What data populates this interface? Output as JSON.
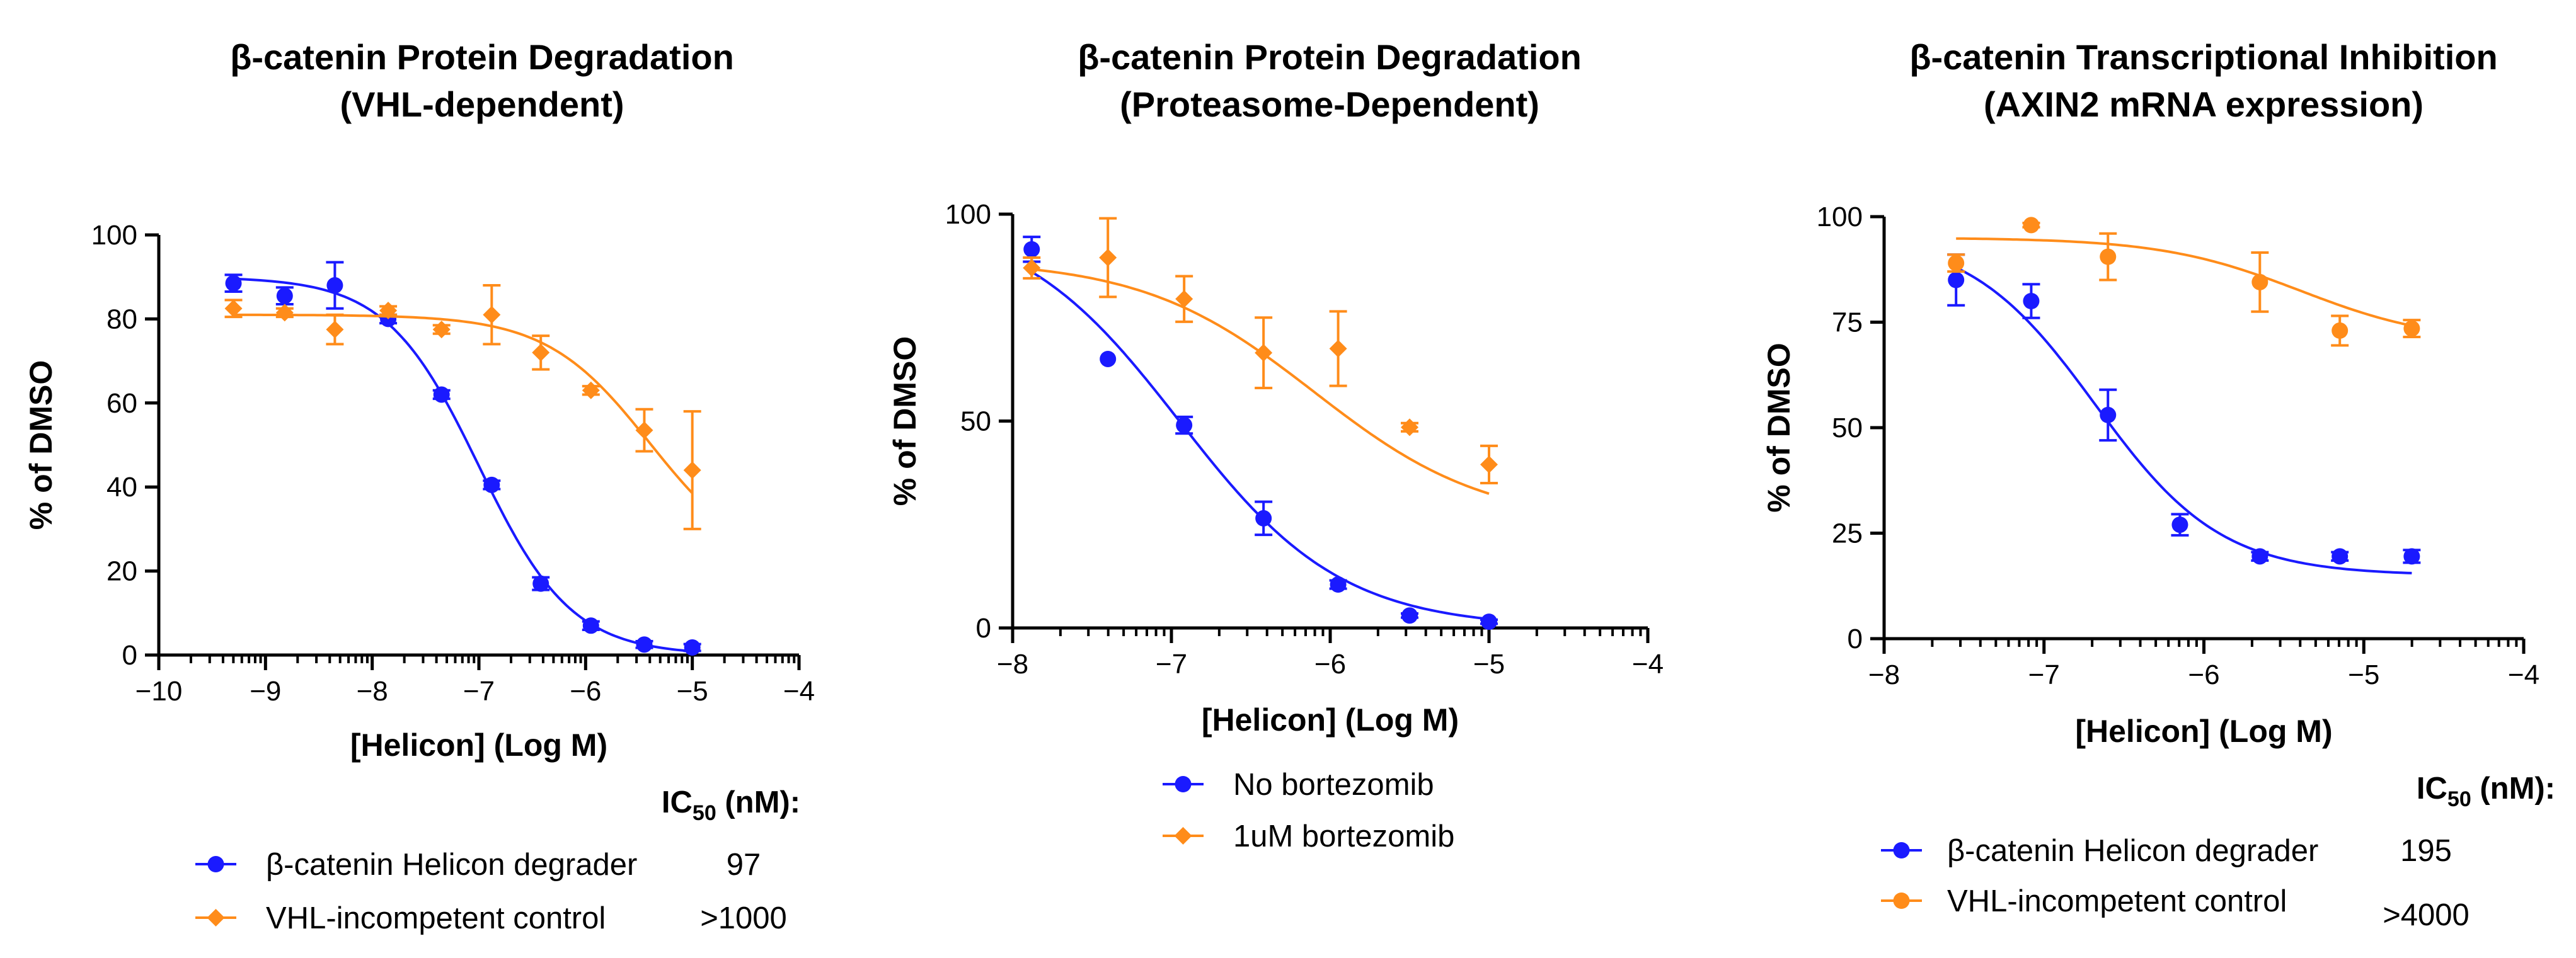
{
  "chart_data": [
    {
      "type": "scatter",
      "title": [
        "β-catenin Protein Degradation",
        "(VHL-dependent)"
      ],
      "xlabel": "[Helicon] (Log M)",
      "ylabel": "% of DMSO",
      "xlim": [
        -10,
        -4
      ],
      "ylim": [
        0,
        100
      ],
      "xticks": [
        -10,
        -9,
        -8,
        -7,
        -6,
        -5,
        -4
      ],
      "yticks": [
        0,
        20,
        40,
        60,
        80,
        100
      ],
      "x_scale": "log10 molar",
      "legend_header": "IC50 (nM):",
      "series": [
        {
          "name": "β-catenin Helicon degrader",
          "ic50_nM": "97",
          "color": "#1a1aff",
          "marker": "circle",
          "points": [
            {
              "x": -9.3,
              "y": 88.5,
              "err": 2
            },
            {
              "x": -8.82,
              "y": 85.5,
              "err": 2
            },
            {
              "x": -8.35,
              "y": 88,
              "err": 5.5
            },
            {
              "x": -7.85,
              "y": 80,
              "err": 1
            },
            {
              "x": -7.35,
              "y": 62,
              "err": 1
            },
            {
              "x": -6.88,
              "y": 40.5,
              "err": 1
            },
            {
              "x": -6.42,
              "y": 17,
              "err": 1.5
            },
            {
              "x": -5.95,
              "y": 7,
              "err": 1
            },
            {
              "x": -5.45,
              "y": 2.5,
              "err": 0.8
            },
            {
              "x": -5.0,
              "y": 1.8,
              "err": 0.8
            }
          ],
          "fit": {
            "top": 90,
            "bottom": 0,
            "logEC50": -7.0,
            "hill": 1.0
          }
        },
        {
          "name": "VHL-incompetent control",
          "ic50_nM": ">1000",
          "color": "#ff8c1a",
          "marker": "diamond",
          "points": [
            {
              "x": -9.3,
              "y": 82.5,
              "err": 2
            },
            {
              "x": -8.82,
              "y": 81.5,
              "err": 1
            },
            {
              "x": -8.35,
              "y": 77.5,
              "err": 3.5
            },
            {
              "x": -7.85,
              "y": 82,
              "err": 1
            },
            {
              "x": -7.35,
              "y": 77.5,
              "err": 1
            },
            {
              "x": -6.88,
              "y": 81,
              "err": 7
            },
            {
              "x": -6.42,
              "y": 72,
              "err": 4
            },
            {
              "x": -5.95,
              "y": 63,
              "err": 1
            },
            {
              "x": -5.45,
              "y": 53.5,
              "err": 5
            },
            {
              "x": -5.0,
              "y": 44,
              "err": 14
            }
          ],
          "fit": {
            "top": 81,
            "bottom": 20,
            "logEC50": -5.4,
            "hill": 0.9
          }
        }
      ]
    },
    {
      "type": "scatter",
      "title": [
        "β-catenin Protein Degradation",
        "(Proteasome-Dependent)"
      ],
      "xlabel": "[Helicon] (Log M)",
      "ylabel": "% of DMSO",
      "xlim": [
        -8,
        -4
      ],
      "ylim": [
        0,
        100
      ],
      "xticks": [
        -8,
        -7,
        -6,
        -5,
        -4
      ],
      "yticks": [
        0,
        50,
        100
      ],
      "x_scale": "log10 molar",
      "series": [
        {
          "name": "No bortezomib",
          "color": "#1a1aff",
          "marker": "circle",
          "points": [
            {
              "x": -7.88,
              "y": 91.5,
              "err": 3
            },
            {
              "x": -7.4,
              "y": 65,
              "err": 0
            },
            {
              "x": -6.92,
              "y": 49,
              "err": 2
            },
            {
              "x": -6.42,
              "y": 26.5,
              "err": 4
            },
            {
              "x": -5.95,
              "y": 10.5,
              "err": 1
            },
            {
              "x": -5.5,
              "y": 3,
              "err": 0.5
            },
            {
              "x": -5.0,
              "y": 1.5,
              "err": 0.5
            }
          ],
          "fit": {
            "top": 100,
            "bottom": 0,
            "logEC50": -6.95,
            "hill": 0.85
          }
        },
        {
          "name": "1uM bortezomib",
          "color": "#ff8c1a",
          "marker": "diamond",
          "points": [
            {
              "x": -7.88,
              "y": 87,
              "err": 2.5
            },
            {
              "x": -7.4,
              "y": 89.5,
              "err": 9.5
            },
            {
              "x": -6.92,
              "y": 79.5,
              "err": 5.5
            },
            {
              "x": -6.42,
              "y": 66.5,
              "err": 8.5
            },
            {
              "x": -5.95,
              "y": 67.5,
              "err": 9
            },
            {
              "x": -5.5,
              "y": 48.5,
              "err": 1
            },
            {
              "x": -5.0,
              "y": 39.5,
              "err": 4.5
            }
          ],
          "fit": {
            "top": 89,
            "bottom": 25,
            "logEC50": -6.1,
            "hill": 0.8
          }
        }
      ]
    },
    {
      "type": "scatter",
      "title": [
        "β-catenin Transcriptional Inhibition",
        "(AXIN2 mRNA expression)"
      ],
      "xlabel": "[Helicon] (Log M)",
      "ylabel": "% of DMSO",
      "xlim": [
        -8,
        -4
      ],
      "ylim": [
        0,
        100
      ],
      "xticks": [
        -8,
        -7,
        -6,
        -5,
        -4
      ],
      "yticks": [
        0,
        25,
        50,
        75,
        100
      ],
      "x_scale": "log10 molar",
      "legend_header": "IC50 (nM):",
      "series": [
        {
          "name": "β-catenin Helicon degrader",
          "ic50_nM": "195",
          "color": "#1a1aff",
          "marker": "circle",
          "points": [
            {
              "x": -7.55,
              "y": 85,
              "err": 6
            },
            {
              "x": -7.08,
              "y": 80,
              "err": 4
            },
            {
              "x": -6.6,
              "y": 53,
              "err": 6
            },
            {
              "x": -6.15,
              "y": 27,
              "err": 2.5
            },
            {
              "x": -5.65,
              "y": 19.5,
              "err": 1
            },
            {
              "x": -5.15,
              "y": 19.5,
              "err": 1
            },
            {
              "x": -4.7,
              "y": 19.5,
              "err": 1.5
            }
          ],
          "fit": {
            "top": 96,
            "bottom": 15,
            "logEC50": -6.68,
            "hill": 1.1
          }
        },
        {
          "name": "VHL-incompetent control",
          "ic50_nM": ">4000",
          "color": "#ff8c1a",
          "marker": "circle",
          "points": [
            {
              "x": -7.55,
              "y": 89,
              "err": 2
            },
            {
              "x": -7.08,
              "y": 98,
              "err": 0.5
            },
            {
              "x": -6.6,
              "y": 90.5,
              "err": 5.5
            },
            {
              "x": -5.65,
              "y": 84.5,
              "err": 7
            },
            {
              "x": -5.15,
              "y": 73,
              "err": 3.5
            },
            {
              "x": -4.7,
              "y": 73.5,
              "err": 2
            }
          ],
          "fit": {
            "top": 95,
            "bottom": 70,
            "logEC50": -5.4,
            "hill": 1.0
          }
        }
      ]
    }
  ]
}
